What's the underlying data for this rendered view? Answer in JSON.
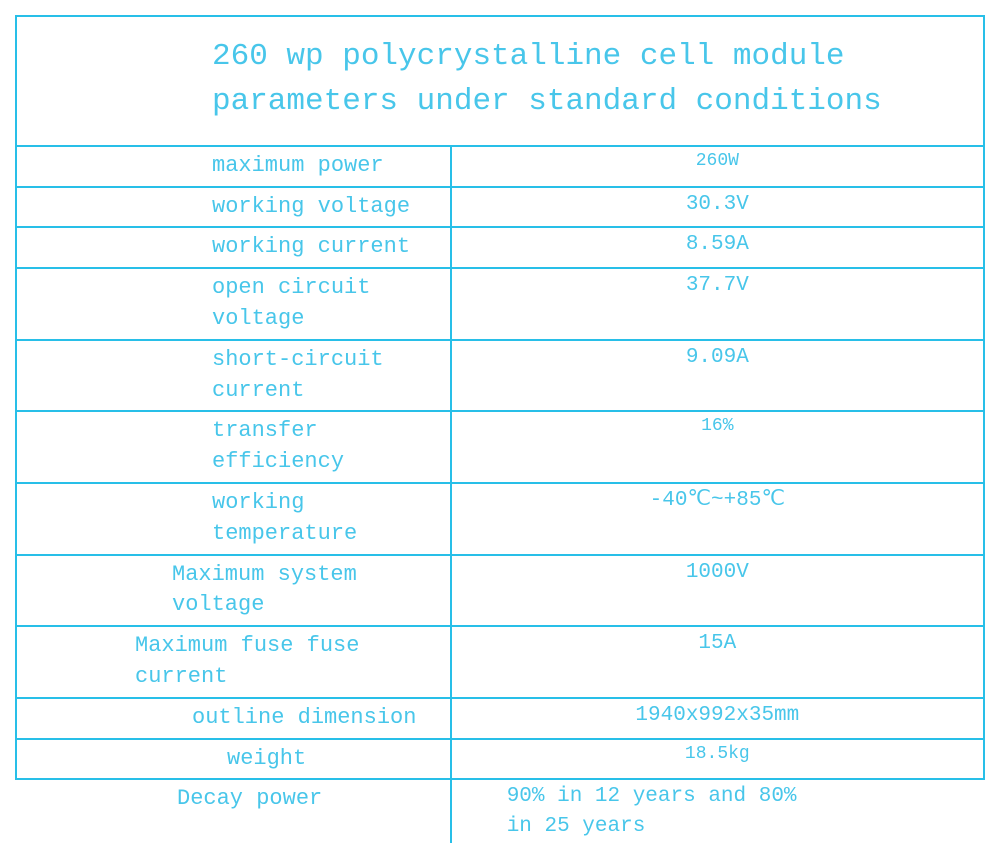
{
  "styling": {
    "border_color": "#28bfe8",
    "text_color": "#48c6ea",
    "background_color": "#ffffff",
    "font_family": "Courier New, monospace",
    "title_fontsize": 31,
    "label_fontsize": 22,
    "value_fontsize": 22,
    "small_fontsize": 18
  },
  "title": {
    "line1": "260 wp polycrystalline cell module",
    "line2": "parameters under standard conditions"
  },
  "rows": [
    {
      "label": "maximum power",
      "value": "260W",
      "label_indent": 195,
      "value_size": "sm"
    },
    {
      "label": "working voltage",
      "value": "30.3V",
      "label_indent": 195,
      "value_size": "med"
    },
    {
      "label": "working current",
      "value": "8.59A",
      "label_indent": 195,
      "value_size": "med"
    },
    {
      "label": "open circuit voltage",
      "value": "37.7V",
      "label_indent": 195,
      "value_size": "med"
    },
    {
      "label": "short-circuit current",
      "value": "9.09A",
      "label_indent": 195,
      "value_size": "med"
    },
    {
      "label": "transfer efficiency",
      "value": "16%",
      "label_indent": 195,
      "value_size": "sm"
    },
    {
      "label": "working temperature",
      "value": "-40℃~+85℃",
      "label_indent": 195,
      "value_size": "med"
    },
    {
      "label": "Maximum system voltage",
      "value": "1000V",
      "label_indent": 155,
      "value_size": "med"
    },
    {
      "label": "Maximum fuse fuse current",
      "value": "15A",
      "label_indent": 118,
      "value_size": "med"
    },
    {
      "label": "outline dimension",
      "value": "1940x992x35mm",
      "label_indent": 175,
      "value_size": "med"
    },
    {
      "label": "weight",
      "value": "18.5kg",
      "label_indent": 210,
      "value_size": "sm"
    },
    {
      "label": "Decay power",
      "value": "90% in 12 years and 80% in 25 years",
      "label_indent": 160,
      "value_size": "med",
      "value_align": "left"
    }
  ]
}
